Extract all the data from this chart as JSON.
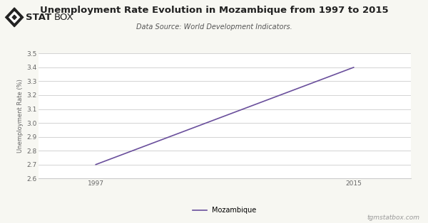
{
  "title": "Unemployment Rate Evolution in Mozambique from 1997 to 2015",
  "subtitle": "Data Source: World Development Indicators.",
  "xlabel": "",
  "ylabel": "Unemployment Rate (%)",
  "x_data": [
    1997,
    2015
  ],
  "y_data": [
    2.7,
    3.4
  ],
  "line_color": "#6a4f9c",
  "line_width": 1.2,
  "xlim": [
    1993,
    2019
  ],
  "ylim": [
    2.6,
    3.5
  ],
  "yticks": [
    2.6,
    2.7,
    2.8,
    2.9,
    3.0,
    3.1,
    3.2,
    3.3,
    3.4,
    3.5
  ],
  "xticks": [
    1997,
    2015
  ],
  "legend_label": "Mozambique",
  "bg_color": "#f7f7f2",
  "plot_bg_color": "#ffffff",
  "grid_color": "#cccccc",
  "title_fontsize": 9.5,
  "subtitle_fontsize": 7,
  "ylabel_fontsize": 6,
  "tick_fontsize": 6.5,
  "watermark": "tgmstatbox.com",
  "logo_color": "#222222"
}
